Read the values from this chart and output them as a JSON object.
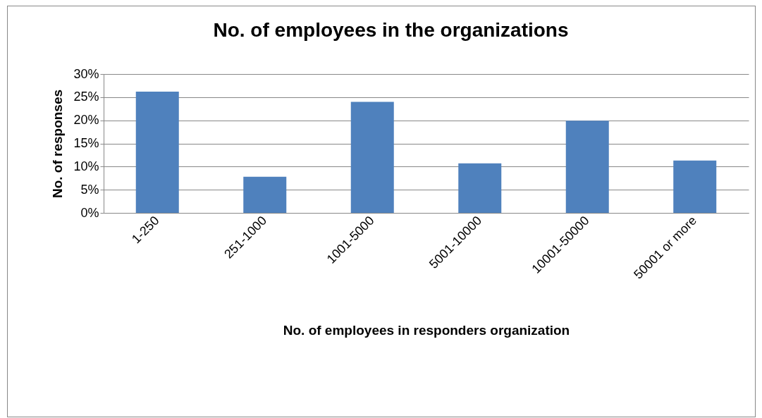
{
  "chart_data": {
    "type": "bar",
    "title": "No. of employees in the organizations",
    "xlabel": "No. of employees in responders  organization",
    "ylabel": "No. of responses",
    "categories": [
      "1-250",
      "251-1000",
      "1001-5000",
      "5001-10000",
      "10001-50000",
      "50001 or more"
    ],
    "values": [
      26.2,
      7.8,
      24.0,
      10.7,
      19.9,
      11.3
    ],
    "color": "#4f81bd",
    "ylim": [
      0,
      30
    ],
    "yticks": [
      {
        "value": 0,
        "label": "0%"
      },
      {
        "value": 5,
        "label": "5%"
      },
      {
        "value": 10,
        "label": "10%"
      },
      {
        "value": 15,
        "label": "15%"
      },
      {
        "value": 20,
        "label": "20%"
      },
      {
        "value": 25,
        "label": "25%"
      },
      {
        "value": 30,
        "label": "30%"
      }
    ],
    "grid": "y"
  }
}
